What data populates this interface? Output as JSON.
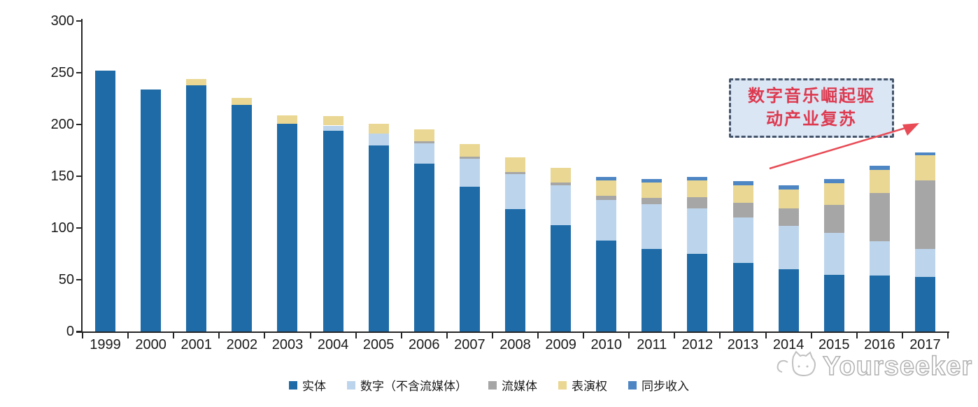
{
  "chart_data": {
    "type": "bar",
    "stacked": true,
    "title": "",
    "xlabel": "",
    "ylabel": "",
    "ylim": [
      0,
      300
    ],
    "yticks": [
      0,
      50,
      100,
      150,
      200,
      250,
      300
    ],
    "grid": false,
    "legend_position": "bottom",
    "categories": [
      "1999",
      "2000",
      "2001",
      "2002",
      "2003",
      "2004",
      "2005",
      "2006",
      "2007",
      "2008",
      "2009",
      "2010",
      "2011",
      "2012",
      "2013",
      "2014",
      "2015",
      "2016",
      "2017"
    ],
    "series": [
      {
        "name": "实体",
        "color": "#1E6BA8",
        "values": [
          252,
          234,
          238,
          219,
          201,
          194,
          180,
          162,
          140,
          118,
          103,
          88,
          80,
          75,
          66,
          60,
          55,
          54,
          53
        ]
      },
      {
        "name": "数字（不含流媒体）",
        "color": "#BDD5EC",
        "values": [
          0,
          0,
          0,
          0,
          0,
          5,
          11,
          20,
          27,
          34,
          38,
          39,
          43,
          44,
          44,
          42,
          40,
          33,
          27
        ]
      },
      {
        "name": "流媒体",
        "color": "#A6A6A6",
        "values": [
          0,
          0,
          0,
          0,
          0,
          0,
          0,
          2,
          2,
          2,
          3,
          4,
          6,
          11,
          14,
          17,
          27,
          47,
          66
        ]
      },
      {
        "name": "表演权",
        "color": "#E9D793",
        "values": [
          0,
          0,
          6,
          7,
          8,
          9,
          10,
          11,
          12,
          14,
          14,
          15,
          15,
          16,
          17,
          18,
          21,
          22,
          24
        ]
      },
      {
        "name": "同步收入",
        "color": "#4E86C4",
        "values": [
          0,
          0,
          0,
          0,
          0,
          0,
          0,
          0,
          0,
          0,
          0,
          3,
          3,
          3,
          4,
          4,
          4,
          4,
          3
        ]
      }
    ]
  },
  "annotation": {
    "lines": [
      "数字音乐崛起驱",
      "动产业复苏"
    ],
    "text_color": "#DD3A50",
    "border_color": "#44546A",
    "fill_color": "#DBE6F4",
    "arrow_color": "#E84B55"
  },
  "watermark": {
    "text": "Yourseeker"
  }
}
